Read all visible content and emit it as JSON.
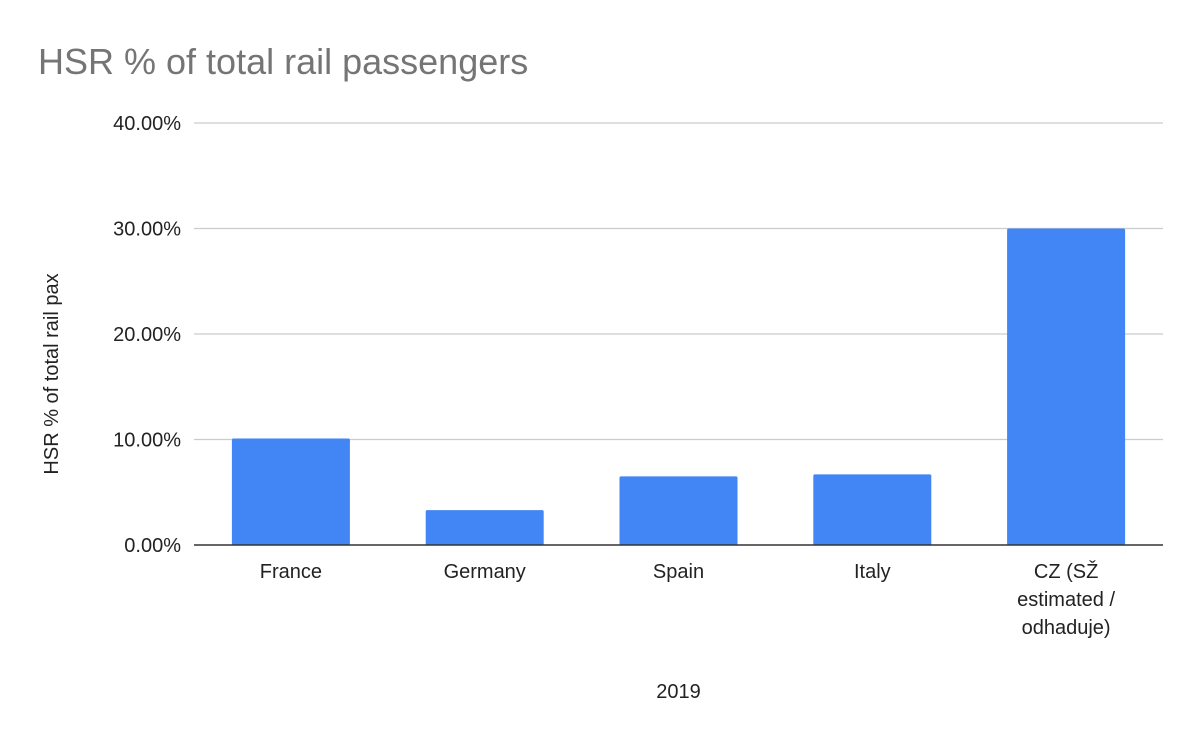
{
  "chart_data": {
    "type": "bar",
    "title": "HSR % of total rail passengers",
    "xlabel": "2019",
    "ylabel": "HSR % of total rail pax",
    "categories": [
      [
        "France"
      ],
      [
        "Germany"
      ],
      [
        "Spain"
      ],
      [
        "Italy"
      ],
      [
        "CZ (SŽ",
        "estimated /",
        "odhaduje)"
      ]
    ],
    "values": [
      10.1,
      3.3,
      6.5,
      6.7,
      30.0
    ],
    "ylim": [
      0,
      40
    ],
    "yticks": [
      0,
      10,
      20,
      30,
      40
    ],
    "ytick_labels": [
      "0.00%",
      "10.00%",
      "20.00%",
      "30.00%",
      "40.00%"
    ],
    "grid": true,
    "legend": "none",
    "colors": {
      "bar": "#4285f4",
      "title": "#757575",
      "text": "#222222",
      "grid": "#cccccc",
      "axis": "#333333"
    }
  }
}
